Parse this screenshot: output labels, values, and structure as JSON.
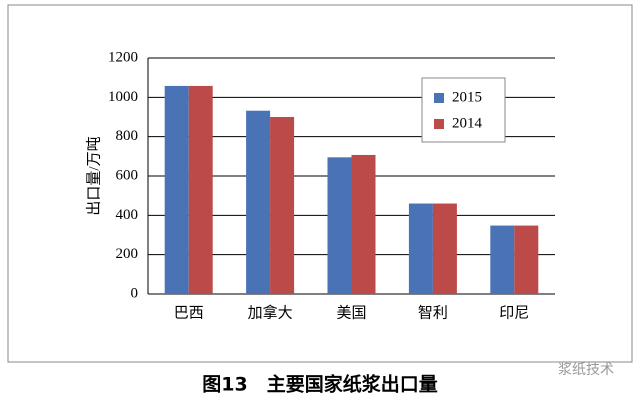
{
  "chart_data": {
    "type": "bar",
    "title": "图13　主要国家纸浆出口量",
    "y_label": "出口量/万吨",
    "categories": [
      "巴西",
      "加拿大",
      "美国",
      "智利",
      "印尼"
    ],
    "series": [
      {
        "name": "2015",
        "color": "#4a73b6",
        "values": [
          1058,
          932,
          695,
          460,
          348
        ]
      },
      {
        "name": "2014",
        "color": "#bb4a48",
        "values": [
          1058,
          900,
          707,
          460,
          348
        ]
      }
    ],
    "ylim": [
      0,
      1200
    ],
    "yticks": [
      0,
      200,
      400,
      600,
      800,
      1000,
      1200
    ],
    "grid": true,
    "legend": "upper right"
  },
  "watermark": "浆纸技术"
}
